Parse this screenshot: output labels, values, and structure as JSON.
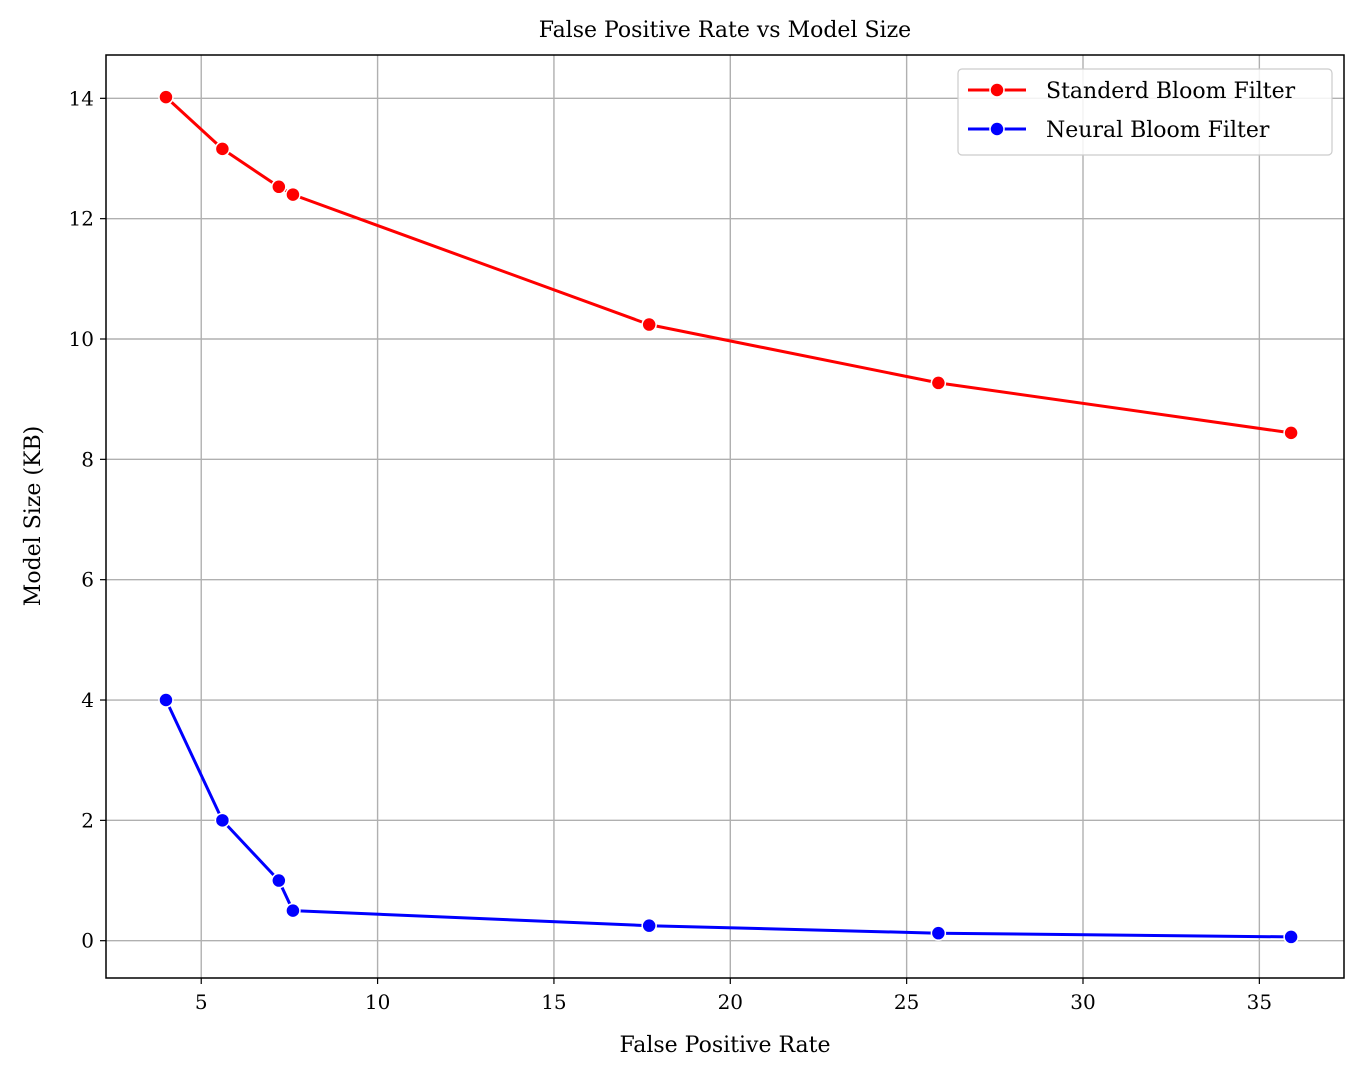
{
  "chart_data": {
    "type": "line",
    "title": "False Positive Rate vs Model Size",
    "xlabel": "False Positive Rate",
    "ylabel": "Model Size (KB)",
    "xlim": [
      2.3,
      37.4
    ],
    "ylim": [
      -0.62,
      14.72
    ],
    "xticks": [
      5,
      10,
      15,
      20,
      25,
      30,
      35
    ],
    "yticks": [
      0,
      2,
      4,
      6,
      8,
      10,
      12,
      14
    ],
    "grid": true,
    "legend_position": "top-right",
    "series": [
      {
        "name": "Standerd Bloom Filter",
        "color": "#ff0000",
        "marker": "circle",
        "x": [
          4.0,
          5.6,
          7.2,
          7.6,
          17.7,
          25.9,
          35.9
        ],
        "y": [
          14.02,
          13.16,
          12.53,
          12.4,
          10.24,
          9.27,
          8.44
        ]
      },
      {
        "name": "Neural Bloom Filter",
        "color": "#0000ff",
        "marker": "circle",
        "x": [
          4.0,
          5.6,
          7.2,
          7.6,
          17.7,
          25.9,
          35.9
        ],
        "y": [
          4.0,
          2.0,
          1.0,
          0.5,
          0.25,
          0.125,
          0.0625
        ]
      }
    ]
  }
}
